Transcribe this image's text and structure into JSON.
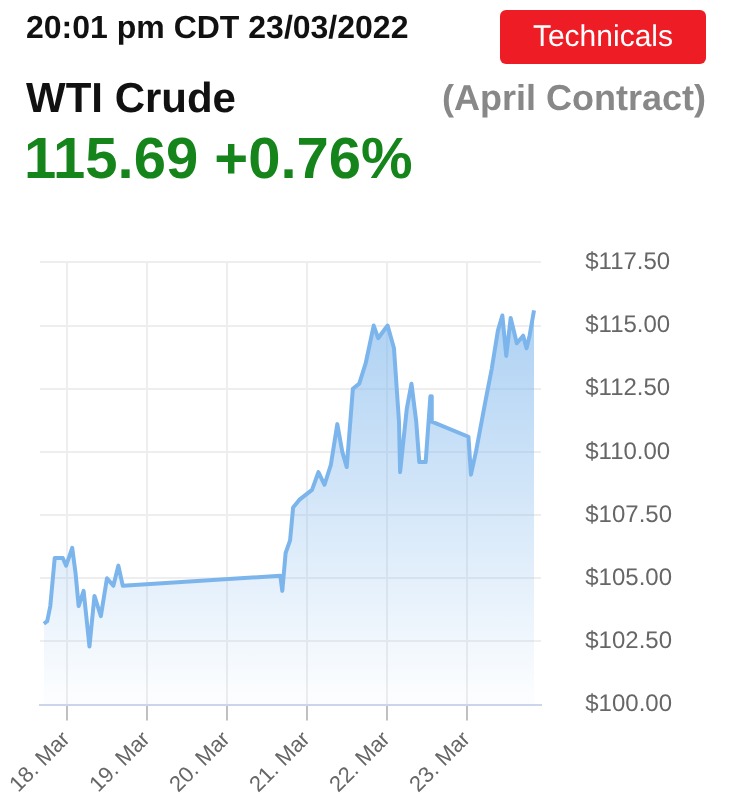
{
  "chart_data": {
    "type": "area",
    "title": "WTI Crude",
    "subtitle": "(April Contract)",
    "annotations": [
      "20:01 pm CDT 23/03/2022",
      "Technicals",
      "115.69 +0.76%"
    ],
    "x": [
      "2022-03-17T17:10",
      "2022-03-17T18:10",
      "2022-03-17T19:05",
      "2022-03-17T20:25",
      "2022-03-17T22:50",
      "2022-03-17T23:50",
      "2022-03-18T01:40",
      "2022-03-18T02:40",
      "2022-03-18T03:35",
      "2022-03-18T05:05",
      "2022-03-18T06:50",
      "2022-03-18T08:20",
      "2022-03-18T10:15",
      "2022-03-18T12:05",
      "2022-03-18T14:00",
      "2022-03-18T15:30",
      "2022-03-18T16:50",
      "2022-03-20T16:05",
      "2022-03-20T16:40",
      "2022-03-20T17:40",
      "2022-03-20T19:00",
      "2022-03-20T19:55",
      "2022-03-20T21:45",
      "2022-03-21T01:35",
      "2022-03-21T03:30",
      "2022-03-21T05:20",
      "2022-03-21T07:15",
      "2022-03-21T09:10",
      "2022-03-21T10:40",
      "2022-03-21T12:00",
      "2022-03-21T13:50",
      "2022-03-21T15:45",
      "2022-03-21T17:40",
      "2022-03-21T20:05",
      "2022-03-21T21:25",
      "2022-03-22T00:15",
      "2022-03-22T02:10",
      "2022-03-22T03:40",
      "2022-03-22T04:00",
      "2022-03-22T06:00",
      "2022-03-22T07:25",
      "2022-03-22T08:50",
      "2022-03-22T09:45",
      "2022-03-22T11:40",
      "2022-03-22T13:05",
      "2022-03-22T13:30",
      "2022-03-23T00:30",
      "2022-03-23T01:15",
      "2022-03-23T02:45",
      "2022-03-23T05:35",
      "2022-03-23T07:30",
      "2022-03-23T09:20",
      "2022-03-23T10:40",
      "2022-03-23T11:50",
      "2022-03-23T13:10",
      "2022-03-23T15:00",
      "2022-03-23T16:55",
      "2022-03-23T17:55",
      "2022-03-23T18:50",
      "2022-03-23T20:10"
    ],
    "series": [
      {
        "color": "#7cb5ec",
        "values": [
          103.2,
          103.3,
          103.9,
          105.8,
          105.8,
          105.5,
          106.2,
          105.2,
          103.9,
          104.5,
          102.3,
          104.3,
          103.5,
          105.0,
          104.7,
          105.5,
          104.7,
          105.1,
          104.5,
          106.0,
          106.5,
          107.8,
          108.1,
          108.5,
          109.2,
          108.7,
          109.5,
          111.1,
          110.0,
          109.4,
          112.5,
          112.7,
          113.5,
          115.0,
          114.5,
          115.0,
          114.1,
          111.2,
          109.2,
          111.7,
          112.7,
          111.2,
          109.6,
          109.6,
          112.2,
          111.2,
          110.6,
          109.1,
          110.0,
          112.0,
          113.3,
          114.8,
          115.4,
          113.8,
          115.3,
          114.3,
          114.6,
          114.1,
          114.6,
          115.6
        ]
      }
    ],
    "xlim": [
      "2022-03-17T16:00",
      "2022-03-23T22:20"
    ],
    "xticks": [
      {
        "value": "2022-03-18",
        "label": "18. Mar"
      },
      {
        "value": "2022-03-19",
        "label": "19. Mar"
      },
      {
        "value": "2022-03-20",
        "label": "20. Mar"
      },
      {
        "value": "2022-03-21",
        "label": "21. Mar"
      },
      {
        "value": "2022-03-22",
        "label": "22. Mar"
      },
      {
        "value": "2022-03-23",
        "label": "23. Mar"
      }
    ],
    "ylim": [
      100,
      117.5
    ],
    "yticks": [
      {
        "value": 100,
        "label": "$100.00"
      },
      {
        "value": 102.5,
        "label": "$102.50"
      },
      {
        "value": 105,
        "label": "$105.00"
      },
      {
        "value": 107.5,
        "label": "$107.50"
      },
      {
        "value": 110,
        "label": "$110.00"
      },
      {
        "value": 112.5,
        "label": "$112.50"
      },
      {
        "value": 115,
        "label": "$115.00"
      },
      {
        "value": 117.5,
        "label": "$117.50"
      }
    ],
    "grid": true,
    "legend": false,
    "marker": "none",
    "line_style": "solid"
  }
}
